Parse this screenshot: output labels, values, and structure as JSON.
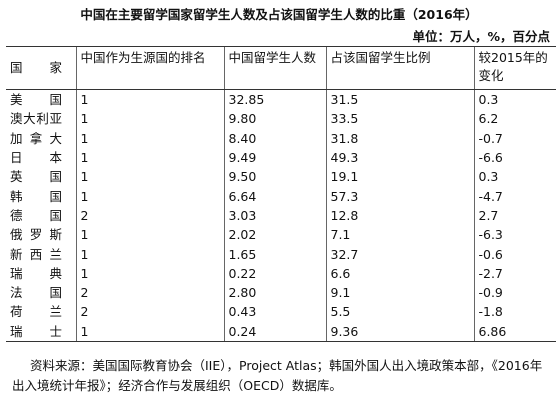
{
  "header": {
    "title": "中国在主要留学国家留学生人数及占该国留学生人数的比重（2016年）",
    "unit": "单位：万人，%，百分点"
  },
  "table": {
    "columns": [
      "国家",
      "中国作为生源国的排名",
      "中国留学生人数",
      "占该国留学生比例",
      "较2015年的变化"
    ],
    "rows": [
      [
        "美国",
        "1",
        "32.85",
        "31.5",
        "0.3"
      ],
      [
        "澳大利亚",
        "1",
        "9.80",
        "33.5",
        "6.2"
      ],
      [
        "加拿大",
        "1",
        "8.40",
        "31.8",
        "-0.7"
      ],
      [
        "日本",
        "1",
        "9.49",
        "49.3",
        "-6.6"
      ],
      [
        "英国",
        "1",
        "9.50",
        "19.1",
        "0.3"
      ],
      [
        "韩国",
        "1",
        "6.64",
        "57.3",
        "-4.7"
      ],
      [
        "德国",
        "2",
        "3.03",
        "12.8",
        "2.7"
      ],
      [
        "俄罗斯",
        "1",
        "2.02",
        "7.1",
        "-6.3"
      ],
      [
        "新西兰",
        "1",
        "1.65",
        "32.7",
        "-0.6"
      ],
      [
        "瑞典",
        "1",
        "0.22",
        "6.6",
        "-2.7"
      ],
      [
        "法国",
        "2",
        "2.80",
        "9.1",
        "-0.9"
      ],
      [
        "荷兰",
        "2",
        "0.43",
        "5.5",
        "-1.8"
      ],
      [
        "瑞士",
        "1",
        "0.24",
        "9.36",
        "6.86"
      ]
    ]
  },
  "footer": {
    "source": "资料来源：美国国际教育协会（IIE），Project Atlas；韩国外国人出入境政策本部，《2016年出入境统计年报》；经济合作与发展组织（OECD）数据库。"
  }
}
